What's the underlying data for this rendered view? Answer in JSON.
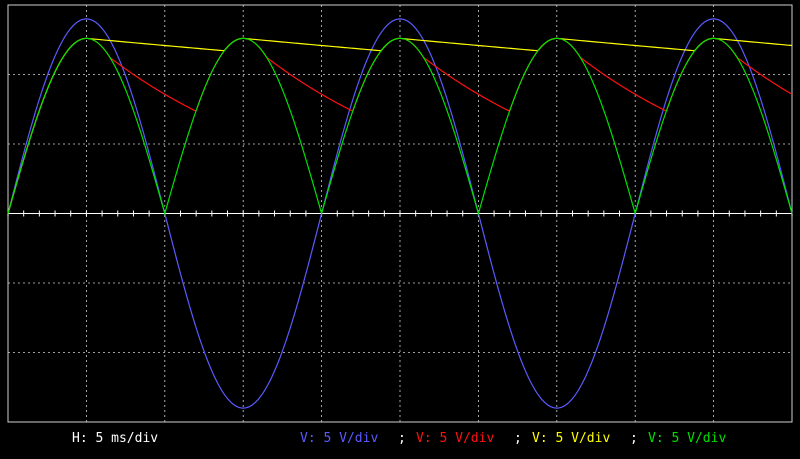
{
  "chart_data": {
    "type": "line",
    "title": "",
    "x_divisions": 10,
    "y_divisions": 6,
    "zero_division_from_top": 3,
    "time_per_div_ms": 5,
    "volts_per_div": 5,
    "xlim_ms": [
      0,
      50
    ],
    "ylim_V": [
      -15,
      15
    ],
    "grid": true,
    "background_color": "#000000",
    "grid_color": "#d0d0d0",
    "series": [
      {
        "channel": "blue",
        "color": "#5a5aff",
        "x_ms": [
          0,
          2.5,
          5,
          7.5,
          10,
          12.5,
          15,
          17.5,
          20,
          22.5,
          25,
          27.5,
          30,
          32.5,
          35,
          37.5,
          40,
          42.5,
          45,
          47.5,
          50
        ],
        "y_V": [
          0,
          9.9,
          14.0,
          9.9,
          0,
          -9.9,
          -14.0,
          -9.9,
          0,
          9.9,
          14.0,
          9.9,
          0,
          -9.9,
          -14.0,
          -9.9,
          0,
          9.9,
          14.0,
          9.9,
          0
        ]
      },
      {
        "channel": "red",
        "color": "#ff1010",
        "x_ms": [
          0,
          2.5,
          5,
          7.5,
          10,
          11.5,
          13.5,
          15,
          17.5,
          20,
          21.5,
          23.5,
          25,
          27.5,
          30,
          31.5,
          33.5,
          35,
          37.5,
          40,
          41.5,
          43.5,
          45,
          47.5,
          50
        ],
        "y_V": [
          0,
          8.5,
          12.6,
          9.3,
          7.5,
          6.8,
          10.5,
          12.6,
          9.3,
          7.5,
          6.8,
          10.5,
          12.6,
          9.3,
          7.5,
          6.8,
          10.5,
          12.6,
          9.3,
          7.5,
          6.8,
          10.5,
          12.6,
          9.3,
          7.5
        ]
      },
      {
        "channel": "yellow",
        "color": "#ffff00",
        "x_ms": [
          0,
          2.5,
          5,
          7.5,
          10,
          12,
          15,
          17.5,
          20,
          22,
          25,
          27.5,
          30,
          32,
          35,
          37.5,
          40,
          42,
          45,
          47.5,
          50
        ],
        "y_V": [
          0,
          9.0,
          12.6,
          12.3,
          12.0,
          11.8,
          12.6,
          12.3,
          12.0,
          11.8,
          12.6,
          12.3,
          12.0,
          11.8,
          12.6,
          12.3,
          12.0,
          11.8,
          12.6,
          12.3,
          12.0
        ]
      },
      {
        "channel": "green",
        "color": "#00e000",
        "x_ms": [
          0,
          2.5,
          5,
          7.5,
          10,
          12.5,
          15,
          17.5,
          20,
          22.5,
          25,
          27.5,
          30,
          32.5,
          35,
          37.5,
          40,
          42.5,
          45,
          47.5,
          50
        ],
        "y_V": [
          0,
          8.6,
          12.6,
          8.6,
          0,
          8.6,
          12.6,
          8.6,
          0,
          8.6,
          12.6,
          8.6,
          0,
          8.6,
          12.6,
          8.6,
          0,
          8.6,
          12.6,
          8.6,
          0
        ]
      }
    ]
  },
  "status": {
    "horizontal": "H: 5 ms/div",
    "separator": ";",
    "channels": [
      {
        "label": "V: 5 V/div",
        "color": "#5a5aff"
      },
      {
        "label": "V: 5 V/div",
        "color": "#ff1010"
      },
      {
        "label": "V: 5 V/div",
        "color": "#ffff00"
      },
      {
        "label": "V: 5 V/div",
        "color": "#00e000"
      }
    ]
  }
}
